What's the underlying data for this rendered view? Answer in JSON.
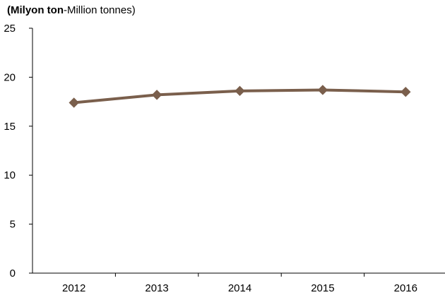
{
  "unit_label": {
    "bold": "(Milyon ton",
    "regular": "-Million tonnes)"
  },
  "colors": {
    "series": "#7a5f4c",
    "axis": "#000000"
  },
  "chart_data": {
    "type": "line",
    "title": "",
    "xlabel": "",
    "ylabel": "",
    "categories": [
      "2012",
      "2013",
      "2014",
      "2015",
      "2016"
    ],
    "ylim": [
      0,
      25
    ],
    "yticks": [
      "0",
      "5",
      "10",
      "15",
      "20",
      "25"
    ],
    "grid": false,
    "series": [
      {
        "values": [
          17.4,
          18.2,
          18.6,
          18.7,
          18.5
        ],
        "marker": "diamond"
      }
    ]
  }
}
